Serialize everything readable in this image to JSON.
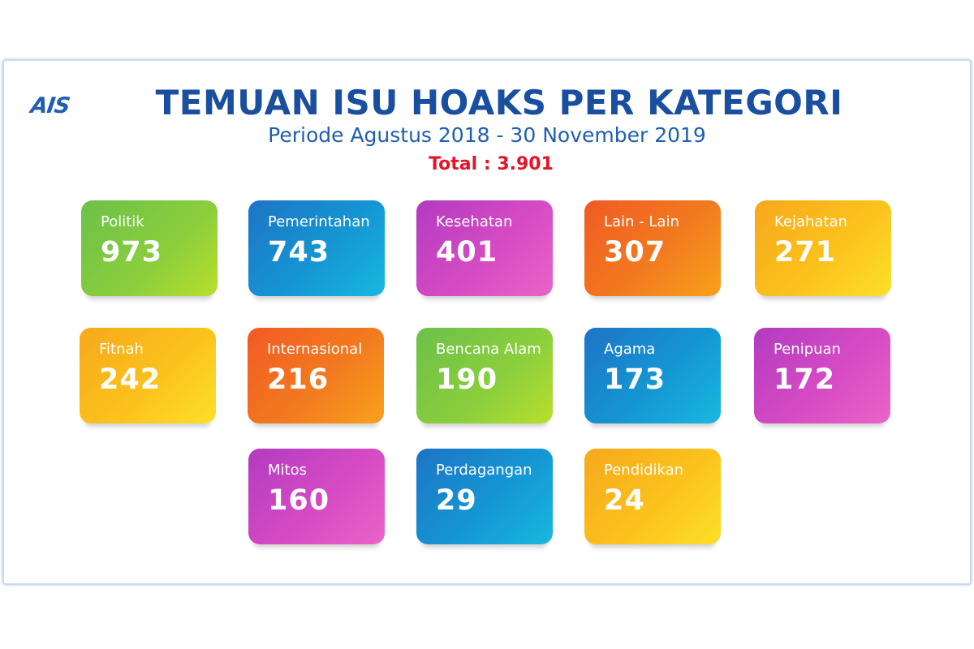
{
  "logo": "AIS",
  "title": "TEMUAN ISU HOAKS PER KATEGORI",
  "subtitle": "Periode Agustus 2018 - 30 November 2019",
  "total": "Total : 3.901",
  "colors": {
    "title": "#1a4fa0",
    "total": "#e4142a",
    "green": "#8ccf3c",
    "blue": "#1596d3",
    "pink": "#d64bc4",
    "orange": "#f27a1f",
    "yellow": "#fbc21c"
  },
  "categories": [
    {
      "label": "Politik",
      "value": "973",
      "color": "green"
    },
    {
      "label": "Pemerintahan",
      "value": "743",
      "color": "blue"
    },
    {
      "label": "Kesehatan",
      "value": "401",
      "color": "pink"
    },
    {
      "label": "Lain - Lain",
      "value": "307",
      "color": "orange"
    },
    {
      "label": "Kejahatan",
      "value": "271",
      "color": "yellow"
    },
    {
      "label": "Fitnah",
      "value": "242",
      "color": "yellow"
    },
    {
      "label": "Internasional",
      "value": "216",
      "color": "orange"
    },
    {
      "label": "Bencana Alam",
      "value": "190",
      "color": "green"
    },
    {
      "label": "Agama",
      "value": "173",
      "color": "blue"
    },
    {
      "label": "Penipuan",
      "value": "172",
      "color": "pink"
    },
    {
      "label": "Mitos",
      "value": "160",
      "color": "pink"
    },
    {
      "label": "Perdagangan",
      "value": "29",
      "color": "blue"
    },
    {
      "label": "Pendidikan",
      "value": "24",
      "color": "yellow"
    }
  ]
}
